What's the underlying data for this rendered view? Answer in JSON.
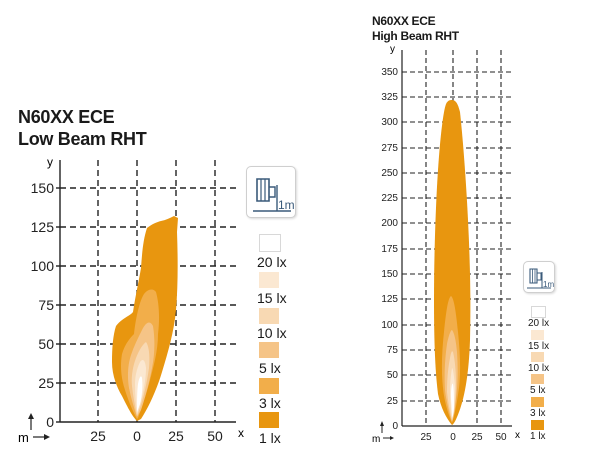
{
  "colors": {
    "lx1": "#E8960F",
    "lx3": "#F2AE4A",
    "lx5": "#F5C487",
    "lx10": "#F8D9B3",
    "lx15": "#FBE8D2",
    "lx20": "#FFFFFF",
    "grid": "#222222",
    "swatch_border": "#d8d8d8"
  },
  "low_beam": {
    "title_line1": "N60XX ECE",
    "title_line2": "Low Beam RHT",
    "axis_y_label": "y",
    "axis_x_label": "x",
    "unit_label": "m",
    "x_ticks": [
      "25",
      "0",
      "25",
      "50"
    ],
    "y_ticks": [
      "150",
      "125",
      "100",
      "75",
      "50",
      "25",
      "0"
    ],
    "mount_icon": "headlight-mount-height-icon",
    "mount_label": "1m",
    "legend": [
      {
        "label": "20 lx",
        "color_key": "lx20"
      },
      {
        "label": "15 lx",
        "color_key": "lx15"
      },
      {
        "label": "10 lx",
        "color_key": "lx10"
      },
      {
        "label": "5 lx",
        "color_key": "lx5"
      },
      {
        "label": "3 lx",
        "color_key": "lx3"
      },
      {
        "label": "1 lx",
        "color_key": "lx1"
      }
    ]
  },
  "high_beam": {
    "title_line1": "N60XX ECE",
    "title_line2": "High Beam RHT",
    "axis_y_label": "y",
    "axis_x_label": "x",
    "unit_label": "m",
    "x_ticks": [
      "25",
      "0",
      "25",
      "50"
    ],
    "y_ticks": [
      "350",
      "325",
      "300",
      "275",
      "250",
      "225",
      "200",
      "175",
      "150",
      "125",
      "100",
      "75",
      "50",
      "25",
      "0"
    ],
    "mount_icon": "headlight-mount-height-icon",
    "mount_label": "1m",
    "legend": [
      {
        "label": "20 lx",
        "color_key": "lx20"
      },
      {
        "label": "15 lx",
        "color_key": "lx15"
      },
      {
        "label": "10 lx",
        "color_key": "lx10"
      },
      {
        "label": "5 lx",
        "color_key": "lx5"
      },
      {
        "label": "3 lx",
        "color_key": "lx3"
      },
      {
        "label": "1 lx",
        "color_key": "lx1"
      }
    ]
  }
}
